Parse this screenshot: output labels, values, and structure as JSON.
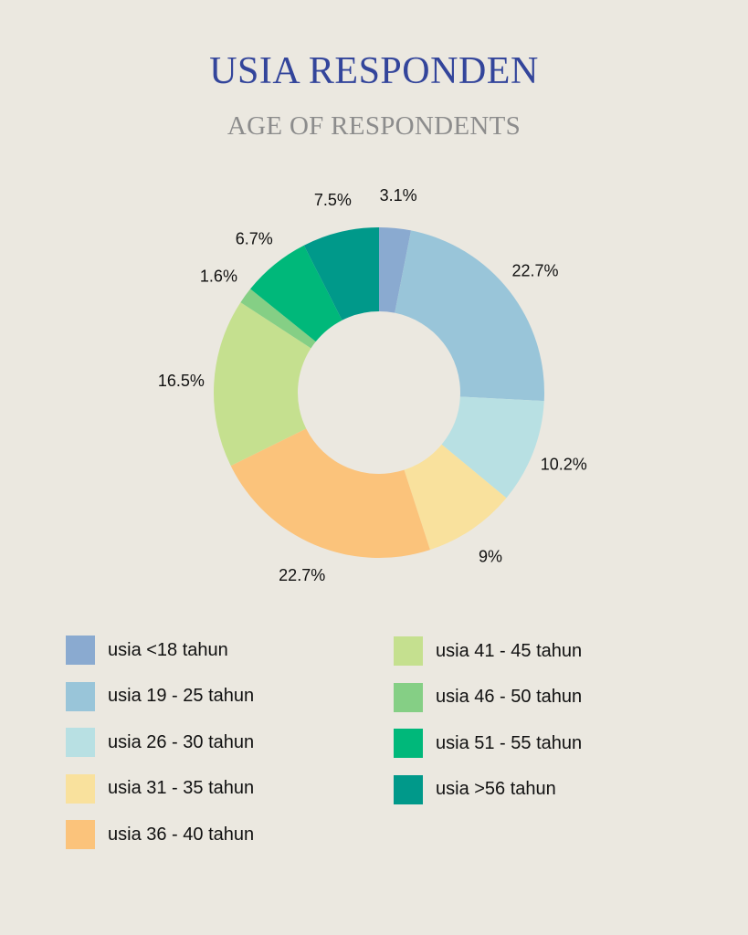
{
  "header": {
    "title": "USIA RESPONDEN",
    "subtitle": "AGE OF RESPONDENTS"
  },
  "chart_data": {
    "type": "pie",
    "donut": true,
    "title": "USIA RESPONDEN",
    "subtitle": "AGE OF RESPONDENTS",
    "categories": [
      "usia <18 tahun",
      "usia 19 - 25 tahun",
      "usia 26 - 30 tahun",
      "usia 31 - 35 tahun",
      "usia 36 - 40 tahun",
      "usia 41 - 45 tahun",
      "usia 46 - 50 tahun",
      "usia 51 - 55 tahun",
      "usia >56 tahun"
    ],
    "values": [
      3.1,
      22.7,
      10.2,
      9,
      22.7,
      16.5,
      1.6,
      6.7,
      7.5
    ],
    "labels": [
      "3.1%",
      "22.7%",
      "10.2%",
      "9%",
      "22.7%",
      "16.5%",
      "1.6%",
      "6.7%",
      "7.5%"
    ],
    "colors": [
      "#8aaad0",
      "#99c5d9",
      "#b8e0e3",
      "#f9e19d",
      "#fbc37b",
      "#c5e08f",
      "#85cf85",
      "#00b87a",
      "#00998a"
    ],
    "legend_position": "bottom"
  }
}
